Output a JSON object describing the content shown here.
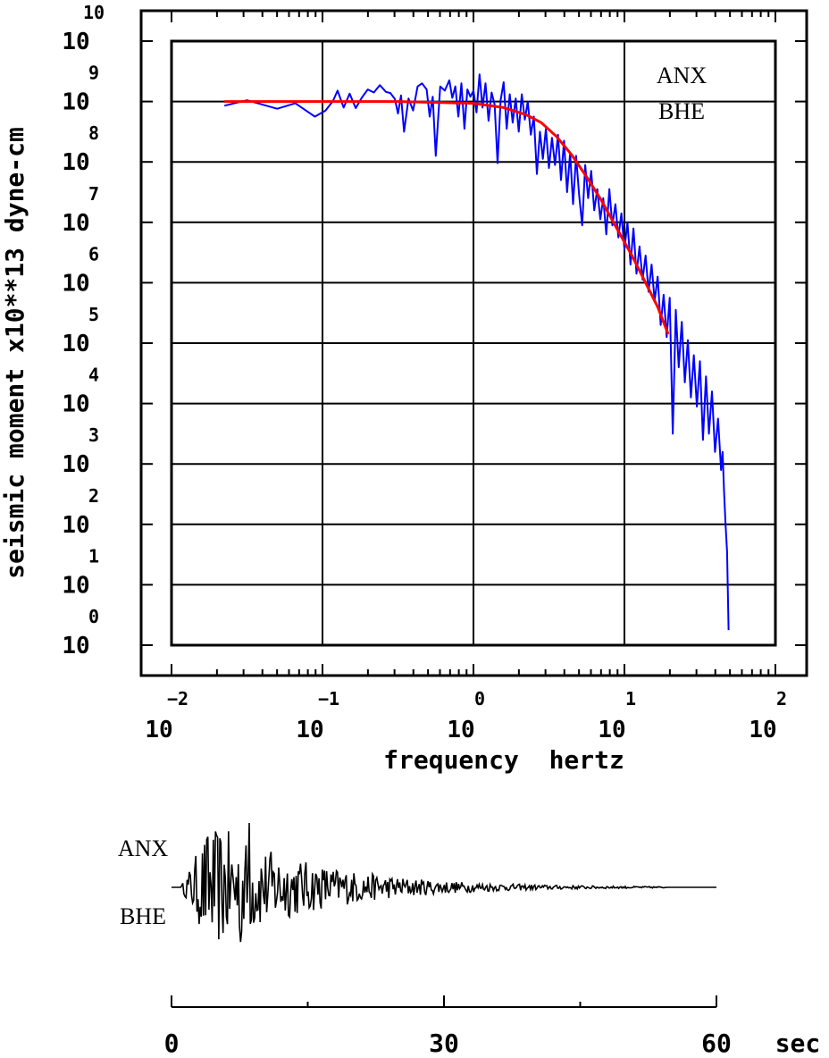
{
  "chart_data": [
    {
      "type": "line",
      "scale": "log-log",
      "xlabel": "frequency  hertz",
      "ylabel": "seismic moment x10**13 dyne-cm",
      "xlim_log10": [
        -2,
        2
      ],
      "ylim_log10": [
        0,
        10
      ],
      "x_ticks": [
        {
          "base": "10",
          "exp": "−2"
        },
        {
          "base": "10",
          "exp": "−1"
        },
        {
          "base": "10",
          "exp": "0"
        },
        {
          "base": "10",
          "exp": "1"
        },
        {
          "base": "10",
          "exp": "2"
        }
      ],
      "y_ticks": [
        {
          "base": "10",
          "exp": "0"
        },
        {
          "base": "10",
          "exp": "1"
        },
        {
          "base": "10",
          "exp": "2"
        },
        {
          "base": "10",
          "exp": "3"
        },
        {
          "base": "10",
          "exp": "4"
        },
        {
          "base": "10",
          "exp": "5"
        },
        {
          "base": "10",
          "exp": "6"
        },
        {
          "base": "10",
          "exp": "7"
        },
        {
          "base": "10",
          "exp": "8"
        },
        {
          "base": "10",
          "exp": "9"
        },
        {
          "base": "10",
          "exp": "10"
        }
      ],
      "grid": true,
      "annotations": [
        "ANX",
        "BHE"
      ],
      "colors": {
        "spectrum": "#0000ff",
        "fit": "#ff0000",
        "axes": "#000000"
      },
      "series": [
        {
          "style": "spectrum",
          "points_log10": [
            [
              -1.65,
              8.93
            ],
            [
              -1.5,
              9.02
            ],
            [
              -1.3,
              8.88
            ],
            [
              -1.18,
              8.97
            ],
            [
              -1.05,
              8.75
            ],
            [
              -0.98,
              8.85
            ],
            [
              -0.93,
              9.01
            ],
            [
              -0.9,
              9.18
            ],
            [
              -0.86,
              8.9
            ],
            [
              -0.82,
              9.13
            ],
            [
              -0.78,
              8.89
            ],
            [
              -0.74,
              9.06
            ],
            [
              -0.7,
              9.2
            ],
            [
              -0.66,
              9.15
            ],
            [
              -0.62,
              9.27
            ],
            [
              -0.58,
              9.16
            ],
            [
              -0.55,
              9.14
            ],
            [
              -0.52,
              9.04
            ],
            [
              -0.5,
              8.8
            ],
            [
              -0.48,
              9.1
            ],
            [
              -0.46,
              8.5
            ],
            [
              -0.43,
              9.05
            ],
            [
              -0.4,
              8.85
            ],
            [
              -0.37,
              9.25
            ],
            [
              -0.34,
              9.3
            ],
            [
              -0.31,
              9.2
            ],
            [
              -0.29,
              8.75
            ],
            [
              -0.27,
              9.08
            ],
            [
              -0.25,
              8.1
            ],
            [
              -0.22,
              9.25
            ],
            [
              -0.19,
              9.18
            ],
            [
              -0.16,
              9.35
            ],
            [
              -0.14,
              9.06
            ],
            [
              -0.12,
              9.25
            ],
            [
              -0.1,
              8.75
            ],
            [
              -0.08,
              9.3
            ],
            [
              -0.06,
              8.55
            ],
            [
              -0.04,
              9.2
            ],
            [
              -0.02,
              9.08
            ],
            [
              0.0,
              9.18
            ],
            [
              0.02,
              8.82
            ],
            [
              0.04,
              9.45
            ],
            [
              0.06,
              8.9
            ],
            [
              0.08,
              9.3
            ],
            [
              0.1,
              8.68
            ],
            [
              0.12,
              9.15
            ],
            [
              0.14,
              8.95
            ],
            [
              0.16,
              7.98
            ],
            [
              0.18,
              9.02
            ],
            [
              0.2,
              9.32
            ],
            [
              0.22,
              8.55
            ],
            [
              0.24,
              9.12
            ],
            [
              0.26,
              8.65
            ],
            [
              0.28,
              9.05
            ],
            [
              0.3,
              8.5
            ],
            [
              0.32,
              9.12
            ],
            [
              0.34,
              8.7
            ],
            [
              0.36,
              9.0
            ],
            [
              0.38,
              8.45
            ],
            [
              0.4,
              8.75
            ],
            [
              0.42,
              7.8
            ],
            [
              0.44,
              8.5
            ],
            [
              0.46,
              8.05
            ],
            [
              0.48,
              8.55
            ],
            [
              0.5,
              7.9
            ],
            [
              0.52,
              8.4
            ],
            [
              0.54,
              7.95
            ],
            [
              0.56,
              8.45
            ],
            [
              0.58,
              7.7
            ],
            [
              0.6,
              8.35
            ],
            [
              0.62,
              7.5
            ],
            [
              0.64,
              8.15
            ],
            [
              0.66,
              7.3
            ],
            [
              0.68,
              8.1
            ],
            [
              0.7,
              7.45
            ],
            [
              0.72,
              6.95
            ],
            [
              0.74,
              7.95
            ],
            [
              0.76,
              7.4
            ],
            [
              0.78,
              7.85
            ],
            [
              0.8,
              7.2
            ],
            [
              0.82,
              7.55
            ],
            [
              0.84,
              7.05
            ],
            [
              0.86,
              7.4
            ],
            [
              0.88,
              6.8
            ],
            [
              0.9,
              7.55
            ],
            [
              0.92,
              6.95
            ],
            [
              0.94,
              7.3
            ],
            [
              0.96,
              6.75
            ],
            [
              0.98,
              7.15
            ],
            [
              1.0,
              6.55
            ],
            [
              1.02,
              7.0
            ],
            [
              1.04,
              6.3
            ],
            [
              1.06,
              6.9
            ],
            [
              1.08,
              6.15
            ],
            [
              1.1,
              6.6
            ],
            [
              1.12,
              6.05
            ],
            [
              1.14,
              6.45
            ],
            [
              1.16,
              5.85
            ],
            [
              1.18,
              6.3
            ],
            [
              1.2,
              5.7
            ],
            [
              1.22,
              6.1
            ],
            [
              1.24,
              5.3
            ],
            [
              1.26,
              5.8
            ],
            [
              1.28,
              5.1
            ],
            [
              1.3,
              5.75
            ],
            [
              1.32,
              3.5
            ],
            [
              1.34,
              5.55
            ],
            [
              1.36,
              4.6
            ],
            [
              1.38,
              5.35
            ],
            [
              1.4,
              4.35
            ],
            [
              1.42,
              5.05
            ],
            [
              1.44,
              4.1
            ],
            [
              1.46,
              4.8
            ],
            [
              1.48,
              3.95
            ],
            [
              1.5,
              4.7
            ],
            [
              1.52,
              3.4
            ],
            [
              1.54,
              4.45
            ],
            [
              1.56,
              3.5
            ],
            [
              1.58,
              4.2
            ],
            [
              1.6,
              3.2
            ],
            [
              1.62,
              3.75
            ],
            [
              1.64,
              2.9
            ],
            [
              1.65,
              3.2
            ],
            [
              1.66,
              2.55
            ],
            [
              1.67,
              2.0
            ],
            [
              1.68,
              1.55
            ],
            [
              1.69,
              0.25
            ]
          ]
        },
        {
          "style": "fit",
          "points_log10": [
            [
              -1.65,
              9.0
            ],
            [
              -1.0,
              9.0
            ],
            [
              -0.5,
              9.0
            ],
            [
              0.0,
              8.97
            ],
            [
              0.2,
              8.9
            ],
            [
              0.35,
              8.78
            ],
            [
              0.45,
              8.65
            ],
            [
              0.55,
              8.42
            ],
            [
              0.65,
              8.12
            ],
            [
              0.75,
              7.75
            ],
            [
              0.85,
              7.35
            ],
            [
              0.95,
              6.9
            ],
            [
              1.05,
              6.45
            ],
            [
              1.15,
              5.95
            ],
            [
              1.22,
              5.6
            ],
            [
              1.29,
              5.15
            ]
          ]
        }
      ]
    },
    {
      "type": "line",
      "title": "",
      "xlabel": "sec",
      "xlim": [
        0,
        60
      ],
      "x_tick_labels": [
        "0",
        "30",
        "60"
      ],
      "x_tick_values": [
        0,
        30,
        60
      ],
      "annotations": [
        "ANX",
        "BHE"
      ],
      "colors": {
        "trace": "#000000"
      },
      "waveform": {
        "t_start": 0,
        "t_end": 60,
        "signal_start": 1.0,
        "signal_end": 54.5,
        "peak_time": 8.6,
        "relative_peak_positive": 1.0,
        "relative_peak_negative": -0.85
      }
    }
  ]
}
